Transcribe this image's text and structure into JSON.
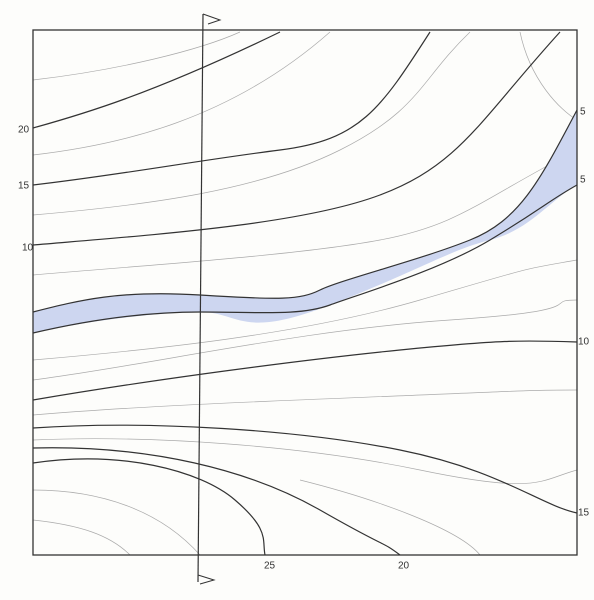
{
  "labels": {
    "left": [
      "20",
      "15",
      "10"
    ],
    "right": [
      "5",
      "5",
      "10",
      "15"
    ],
    "bottom": [
      "25",
      "20"
    ]
  }
}
